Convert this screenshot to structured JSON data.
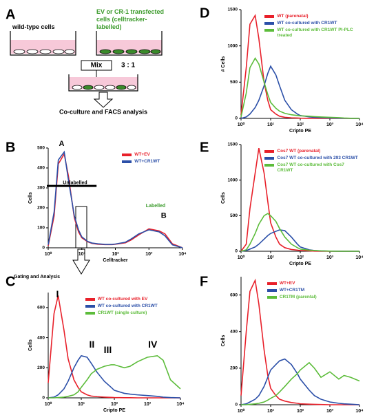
{
  "diagram": {
    "panel": "A",
    "left_label": "wild-type cells",
    "right_label": "EV or CR-1 transfected cells (celltracker-labelled)",
    "mix": "Mix",
    "ratio": "3 : 1",
    "caption": "Co-culture and FACS analysis"
  },
  "gating_label": "Gating and Analysis",
  "chart_data": [
    {
      "type": "line",
      "panel": "B",
      "xscale": "log",
      "xlabel": "Celltracker",
      "ylabel": "Cells",
      "xlim": [
        1,
        10000
      ],
      "ylim": [
        0,
        500
      ],
      "xticks": [
        {
          "value": 1,
          "label": "10⁰"
        },
        {
          "value": 10,
          "label": "10¹"
        },
        {
          "value": 100,
          "label": "10²"
        },
        {
          "value": 1000,
          "label": "10³"
        },
        {
          "value": 10000,
          "label": "10⁴"
        }
      ],
      "yticks": [
        0,
        100,
        200,
        300,
        400,
        500
      ],
      "legend": "upper right",
      "annotations": [
        "A",
        "B",
        "Unlabelled",
        "Labelled"
      ],
      "x": [
        1,
        1.5,
        2,
        3,
        4,
        6,
        8,
        10,
        15,
        20,
        30,
        50,
        80,
        100,
        200,
        300,
        500,
        1000,
        2000,
        3000,
        5000,
        10000
      ],
      "series": [
        {
          "name": "WT+EV",
          "color": "#e8202a",
          "values": [
            10,
            160,
            420,
            470,
            360,
            150,
            80,
            50,
            30,
            22,
            18,
            16,
            16,
            18,
            25,
            40,
            65,
            95,
            85,
            70,
            20,
            0
          ]
        },
        {
          "name": "WT+CR1WT",
          "color": "#2b4fa8",
          "values": [
            15,
            180,
            440,
            480,
            340,
            160,
            90,
            55,
            32,
            24,
            20,
            17,
            17,
            19,
            28,
            45,
            70,
            90,
            80,
            60,
            15,
            0
          ]
        }
      ]
    },
    {
      "type": "line",
      "panel": "C",
      "xscale": "log",
      "xlabel": "Cripto PE",
      "ylabel": "Cells",
      "xlim": [
        1,
        10000
      ],
      "ylim": [
        0,
        700
      ],
      "xticks": [
        {
          "value": 1,
          "label": "10⁰"
        },
        {
          "value": 10,
          "label": "10¹"
        },
        {
          "value": 100,
          "label": "10²"
        },
        {
          "value": 1000,
          "label": "10³"
        },
        {
          "value": 10000,
          "label": "10⁴"
        }
      ],
      "yticks": [
        0,
        200,
        400,
        600
      ],
      "legend": "upper right",
      "annotations": [
        "I",
        "II",
        "III",
        "IV"
      ],
      "x": [
        1,
        1.5,
        2,
        3,
        4,
        6,
        8,
        10,
        15,
        20,
        30,
        50,
        80,
        100,
        200,
        300,
        500,
        1000,
        2000,
        3000,
        5000,
        10000
      ],
      "series": [
        {
          "name": "WT co-cultured with EV",
          "color": "#e8202a",
          "values": [
            100,
            560,
            680,
            450,
            260,
            120,
            70,
            40,
            20,
            12,
            8,
            5,
            3,
            2,
            1,
            1,
            0,
            0,
            0,
            0,
            0,
            0
          ]
        },
        {
          "name": "WT co-cultured with CR1WT",
          "color": "#2b4fa8",
          "values": [
            0,
            5,
            20,
            60,
            110,
            200,
            250,
            280,
            270,
            230,
            170,
            110,
            70,
            50,
            30,
            25,
            20,
            15,
            10,
            5,
            2,
            0
          ]
        },
        {
          "name": "CR1WT (single culture)",
          "color": "#5cbc3a",
          "values": [
            0,
            0,
            2,
            5,
            10,
            20,
            40,
            70,
            120,
            160,
            190,
            210,
            220,
            220,
            200,
            210,
            240,
            270,
            280,
            250,
            120,
            60
          ]
        }
      ]
    },
    {
      "type": "line",
      "panel": "D",
      "xscale": "log",
      "xlabel": "Cripto PE",
      "ylabel": "# Cells",
      "xlim": [
        1,
        10000
      ],
      "ylim": [
        0,
        1500
      ],
      "xticks": [
        {
          "value": 1,
          "label": "10⁰"
        },
        {
          "value": 10,
          "label": "10¹"
        },
        {
          "value": 100,
          "label": "10²"
        },
        {
          "value": 1000,
          "label": "10³"
        },
        {
          "value": 10000,
          "label": "10⁴"
        }
      ],
      "yticks": [
        0,
        500,
        1000,
        1500
      ],
      "legend": "upper right",
      "x": [
        1,
        1.5,
        2,
        3,
        4,
        6,
        8,
        10,
        15,
        20,
        30,
        50,
        80,
        100,
        200,
        300,
        500,
        1000,
        2000,
        3000,
        5000,
        10000
      ],
      "series": [
        {
          "name": "WT (parenatal)",
          "color": "#e8202a",
          "values": [
            50,
            700,
            1300,
            1420,
            1100,
            500,
            250,
            120,
            60,
            30,
            15,
            8,
            5,
            3,
            1,
            0,
            0,
            0,
            0,
            0,
            0,
            0
          ]
        },
        {
          "name": "WT co-cultured with CR1WT",
          "color": "#2b4fa8",
          "values": [
            0,
            20,
            60,
            150,
            250,
            450,
            620,
            720,
            600,
            450,
            250,
            120,
            60,
            40,
            20,
            15,
            10,
            5,
            3,
            2,
            1,
            0
          ]
        },
        {
          "name": "WT co-cultured with CR1WT PI-PLC treated",
          "color": "#5cbc3a",
          "values": [
            20,
            350,
            700,
            830,
            750,
            500,
            330,
            220,
            140,
            100,
            70,
            50,
            40,
            35,
            30,
            25,
            20,
            15,
            10,
            5,
            2,
            0
          ]
        }
      ]
    },
    {
      "type": "line",
      "panel": "E",
      "xscale": "log",
      "xlabel": "Cripto PE",
      "ylabel": "Cells",
      "xlim": [
        1,
        10000
      ],
      "ylim": [
        0,
        1500
      ],
      "xticks": [
        {
          "value": 1,
          "label": "10⁰"
        },
        {
          "value": 10,
          "label": "10¹"
        },
        {
          "value": 100,
          "label": "10²"
        },
        {
          "value": 1000,
          "label": "10³"
        },
        {
          "value": 10000,
          "label": "10⁴"
        }
      ],
      "yticks": [
        0,
        500,
        1000,
        1500
      ],
      "legend": "upper right",
      "x": [
        1,
        1.5,
        2,
        3,
        4,
        6,
        8,
        10,
        15,
        20,
        30,
        50,
        80,
        100,
        200,
        300,
        500,
        1000,
        2000,
        3000,
        5000,
        10000
      ],
      "series": [
        {
          "name": "Cos7 WT (parenatal)",
          "color": "#e8202a",
          "values": [
            0,
            100,
            600,
            1100,
            1450,
            1100,
            700,
            400,
            200,
            100,
            50,
            25,
            15,
            10,
            5,
            2,
            0,
            0,
            0,
            0,
            0,
            0
          ]
        },
        {
          "name": "Cos7 WT co-cultured with 293 CR1WT",
          "color": "#2b4fa8",
          "values": [
            0,
            10,
            30,
            60,
            100,
            170,
            220,
            250,
            280,
            300,
            290,
            200,
            100,
            60,
            20,
            10,
            5,
            2,
            0,
            0,
            0,
            0
          ]
        },
        {
          "name": "Cos7 WT co-cultured with Cos7 CR1WT",
          "color": "#5cbc3a",
          "values": [
            0,
            20,
            100,
            250,
            380,
            500,
            530,
            500,
            420,
            320,
            200,
            100,
            50,
            30,
            15,
            10,
            5,
            2,
            0,
            0,
            0,
            0
          ]
        }
      ]
    },
    {
      "type": "line",
      "panel": "F",
      "xscale": "log",
      "ylabel": "Cells",
      "xlim": [
        1,
        10000
      ],
      "ylim": [
        0,
        700
      ],
      "xticks": [
        {
          "value": 1,
          "label": "10⁰"
        },
        {
          "value": 10,
          "label": "10¹"
        },
        {
          "value": 100,
          "label": "10²"
        },
        {
          "value": 1000,
          "label": "10³"
        },
        {
          "value": 10000,
          "label": "10⁴"
        }
      ],
      "yticks": [
        0,
        200,
        400,
        600
      ],
      "legend": "upper right",
      "x": [
        1,
        1.5,
        2,
        3,
        4,
        6,
        8,
        10,
        15,
        20,
        30,
        50,
        80,
        100,
        200,
        300,
        500,
        1000,
        2000,
        3000,
        5000,
        10000
      ],
      "series": [
        {
          "name": "WT+EV",
          "color": "#e8202a",
          "values": [
            50,
            400,
            620,
            680,
            550,
            300,
            160,
            90,
            50,
            30,
            20,
            12,
            8,
            5,
            3,
            2,
            1,
            0,
            0,
            0,
            0,
            0
          ]
        },
        {
          "name": "WT+CR1TM",
          "color": "#2b4fa8",
          "values": [
            0,
            5,
            15,
            30,
            50,
            100,
            150,
            190,
            220,
            240,
            250,
            220,
            170,
            140,
            80,
            50,
            30,
            15,
            8,
            5,
            3,
            0
          ]
        },
        {
          "name": "CR1TM (parental)",
          "color": "#5cbc3a",
          "values": [
            0,
            0,
            2,
            5,
            8,
            15,
            25,
            35,
            50,
            70,
            100,
            140,
            170,
            190,
            230,
            200,
            150,
            180,
            140,
            160,
            150,
            130
          ]
        }
      ]
    }
  ]
}
